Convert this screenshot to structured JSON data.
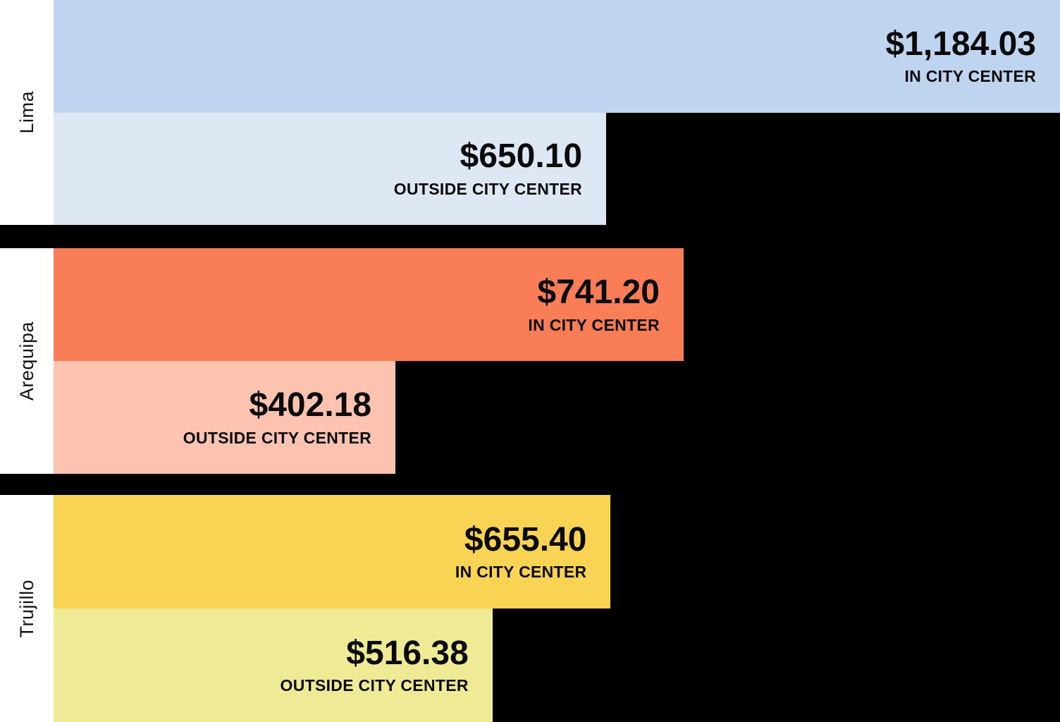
{
  "background_color": "#000000",
  "gutter_color": "#ffffff",
  "text_color": "#0a0a0a",
  "chart_data": {
    "type": "bar",
    "orientation": "horizontal",
    "title": "",
    "categories": [
      "Lima",
      "Arequipa",
      "Trujillo"
    ],
    "series": [
      {
        "name": "In City Center",
        "values": [
          1184.03,
          741.2,
          655.4
        ]
      },
      {
        "name": "Outside City Center",
        "values": [
          650.1,
          402.18,
          516.38
        ]
      }
    ],
    "value_unit": "USD",
    "max_value": 1184.03,
    "xlim": [
      0,
      1184.03
    ],
    "grid": false,
    "legend": "none",
    "data_labels": "inside-bar-right"
  },
  "groups": [
    {
      "city": "Lima",
      "bars": [
        {
          "value": 1184.03,
          "display": "$1,184.03",
          "label": "IN CITY CENTER",
          "color": "#bfd4ee"
        },
        {
          "value": 650.1,
          "display": "$650.10",
          "label": "OUTSIDE CITY CENTER",
          "color": "#dee8f5"
        }
      ]
    },
    {
      "city": "Arequipa",
      "bars": [
        {
          "value": 741.2,
          "display": "$741.20",
          "label": "IN CITY CENTER",
          "color": "#f97d56"
        },
        {
          "value": 402.18,
          "display": "$402.18",
          "label": "OUTSIDE CITY CENTER",
          "color": "#fbc3b0"
        }
      ]
    },
    {
      "city": "Trujillo",
      "bars": [
        {
          "value": 655.4,
          "display": "$655.40",
          "label": "IN CITY CENTER",
          "color": "#f9d354"
        },
        {
          "value": 516.38,
          "display": "$516.38",
          "label": "OUTSIDE CITY CENTER",
          "color": "#efea95"
        }
      ]
    }
  ]
}
